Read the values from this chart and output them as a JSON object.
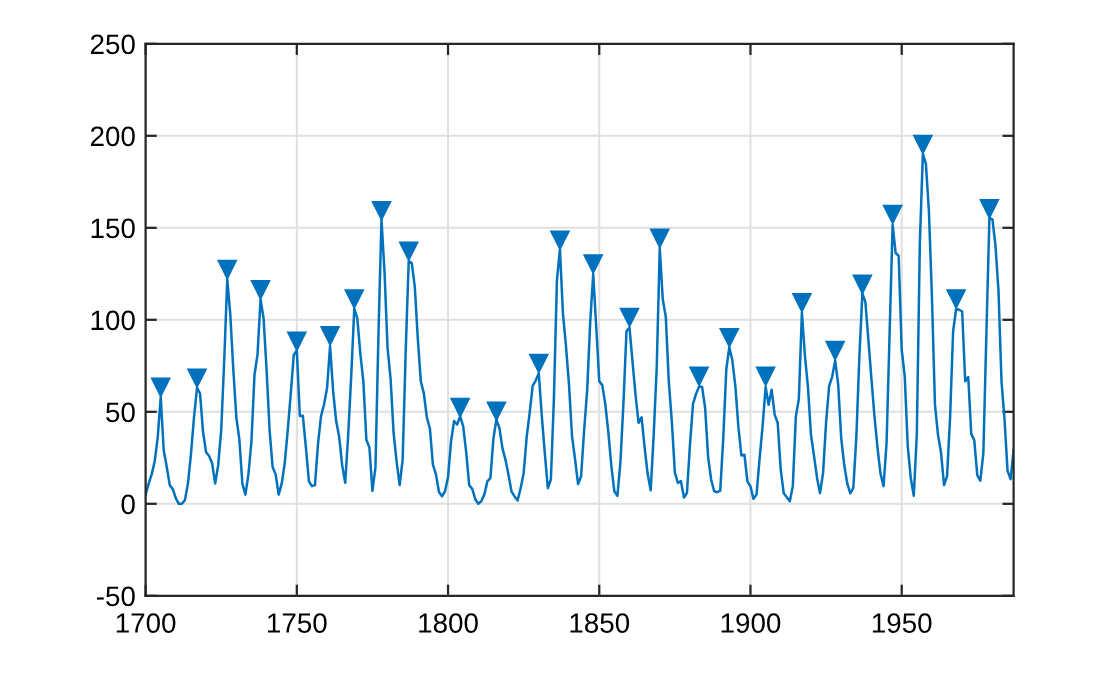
{
  "chart_data": {
    "type": "line",
    "xlim": [
      1700,
      1987
    ],
    "xticks": [
      1700,
      1750,
      1800,
      1850,
      1900,
      1950
    ],
    "ylim": [
      -50,
      250
    ],
    "yticks": [
      -50,
      0,
      50,
      100,
      150,
      200,
      250
    ],
    "grid": true,
    "series": [
      {
        "color": "#0072bd",
        "line_style": "solid",
        "marker": "none",
        "x": [
          1700,
          1701,
          1702,
          1703,
          1704,
          1705,
          1706,
          1707,
          1708,
          1709,
          1710,
          1711,
          1712,
          1713,
          1714,
          1715,
          1716,
          1717,
          1718,
          1719,
          1720,
          1721,
          1722,
          1723,
          1724,
          1725,
          1726,
          1727,
          1728,
          1729,
          1730,
          1731,
          1732,
          1733,
          1734,
          1735,
          1736,
          1737,
          1738,
          1739,
          1740,
          1741,
          1742,
          1743,
          1744,
          1745,
          1746,
          1747,
          1748,
          1749,
          1750,
          1751,
          1752,
          1753,
          1754,
          1755,
          1756,
          1757,
          1758,
          1759,
          1760,
          1761,
          1762,
          1763,
          1764,
          1765,
          1766,
          1767,
          1768,
          1769,
          1770,
          1771,
          1772,
          1773,
          1774,
          1775,
          1776,
          1777,
          1778,
          1779,
          1780,
          1781,
          1782,
          1783,
          1784,
          1785,
          1786,
          1787,
          1788,
          1789,
          1790,
          1791,
          1792,
          1793,
          1794,
          1795,
          1796,
          1797,
          1798,
          1799,
          1800,
          1801,
          1802,
          1803,
          1804,
          1805,
          1806,
          1807,
          1808,
          1809,
          1810,
          1811,
          1812,
          1813,
          1814,
          1815,
          1816,
          1817,
          1818,
          1819,
          1820,
          1821,
          1822,
          1823,
          1824,
          1825,
          1826,
          1827,
          1828,
          1829,
          1830,
          1831,
          1832,
          1833,
          1834,
          1835,
          1836,
          1837,
          1838,
          1839,
          1840,
          1841,
          1842,
          1843,
          1844,
          1845,
          1846,
          1847,
          1848,
          1849,
          1850,
          1851,
          1852,
          1853,
          1854,
          1855,
          1856,
          1857,
          1858,
          1859,
          1860,
          1861,
          1862,
          1863,
          1864,
          1865,
          1866,
          1867,
          1868,
          1869,
          1870,
          1871,
          1872,
          1873,
          1874,
          1875,
          1876,
          1877,
          1878,
          1879,
          1880,
          1881,
          1882,
          1883,
          1884,
          1885,
          1886,
          1887,
          1888,
          1889,
          1890,
          1891,
          1892,
          1893,
          1894,
          1895,
          1896,
          1897,
          1898,
          1899,
          1900,
          1901,
          1902,
          1903,
          1904,
          1905,
          1906,
          1907,
          1908,
          1909,
          1910,
          1911,
          1912,
          1913,
          1914,
          1915,
          1916,
          1917,
          1918,
          1919,
          1920,
          1921,
          1922,
          1923,
          1924,
          1925,
          1926,
          1927,
          1928,
          1929,
          1930,
          1931,
          1932,
          1933,
          1934,
          1935,
          1936,
          1937,
          1938,
          1939,
          1940,
          1941,
          1942,
          1943,
          1944,
          1945,
          1946,
          1947,
          1948,
          1949,
          1950,
          1951,
          1952,
          1953,
          1954,
          1955,
          1956,
          1957,
          1958,
          1959,
          1960,
          1961,
          1962,
          1963,
          1964,
          1965,
          1966,
          1967,
          1968,
          1969,
          1970,
          1971,
          1972,
          1973,
          1974,
          1975,
          1976,
          1977,
          1978,
          1979,
          1980,
          1981,
          1982,
          1983,
          1984,
          1985,
          1986,
          1987
        ],
        "values": [
          5,
          11,
          16,
          23,
          36,
          58,
          29,
          20,
          10,
          8,
          3,
          0,
          0,
          2,
          11,
          27,
          47,
          63,
          60,
          39,
          28,
          26,
          22,
          11,
          21,
          40,
          78,
          122,
          103,
          73,
          47,
          35,
          11,
          5,
          16,
          34,
          70,
          81,
          111,
          101,
          73,
          40,
          20,
          16,
          5,
          11,
          22,
          40,
          60,
          80.9,
          83.4,
          47.7,
          47.8,
          30.7,
          12.2,
          9.6,
          10.2,
          32.4,
          47.6,
          54,
          62.9,
          85.9,
          61.2,
          45.1,
          36.4,
          20.9,
          11.4,
          37.8,
          69.8,
          106.1,
          100.8,
          81.6,
          66.5,
          34.8,
          30.6,
          7,
          19.8,
          92.5,
          154.4,
          125.9,
          84.8,
          68.1,
          38.5,
          22.8,
          10.2,
          24.1,
          82.9,
          132,
          130.9,
          118.1,
          89.9,
          66.6,
          60,
          46.9,
          41,
          21.3,
          16,
          6.4,
          4.1,
          6.8,
          14.5,
          34,
          45,
          43.1,
          47.5,
          42.2,
          28.1,
          10.1,
          8.1,
          2.5,
          0,
          1.4,
          5,
          12.2,
          13.9,
          35.4,
          45.8,
          41.1,
          30.1,
          23.9,
          15.6,
          6.6,
          4,
          1.8,
          8.5,
          16.6,
          36.3,
          49.6,
          64.2,
          67,
          70.9,
          47.8,
          27.5,
          8.5,
          13.2,
          56.9,
          121.5,
          138.3,
          103.2,
          85.7,
          64.6,
          36.7,
          24.2,
          10.7,
          15,
          40.1,
          61.5,
          98.5,
          124.7,
          96.3,
          66.6,
          64.5,
          54.1,
          39,
          20.6,
          6.7,
          4.3,
          22.7,
          54.8,
          93.8,
          95.8,
          77.2,
          59.1,
          44,
          47,
          30.5,
          16.3,
          7.3,
          37.6,
          74,
          139,
          111.2,
          101.6,
          66.2,
          44.7,
          17,
          11.3,
          12.4,
          3.4,
          6,
          32.3,
          54.3,
          59.7,
          63.7,
          63.5,
          52.2,
          25.4,
          13.1,
          6.8,
          6.3,
          7.1,
          35.6,
          73,
          85.1,
          78,
          64,
          41.8,
          26.2,
          26.7,
          12.1,
          9.5,
          2.7,
          5,
          24.4,
          42,
          63.5,
          53.8,
          62,
          48.5,
          43.9,
          18.6,
          5.7,
          3.6,
          1.4,
          9.6,
          47.4,
          57.1,
          103.9,
          80.6,
          63.6,
          37.6,
          26.1,
          14.2,
          5.8,
          16.7,
          44.3,
          63.9,
          69,
          77.8,
          64.9,
          35.7,
          21.2,
          11.1,
          5.7,
          8.7,
          36.1,
          79.7,
          114.4,
          109.6,
          88.8,
          67.8,
          47.5,
          30.6,
          16.3,
          9.6,
          33.2,
          92.6,
          151.6,
          136.3,
          134.7,
          83.9,
          69.4,
          31.5,
          13.9,
          4.4,
          38,
          141.7,
          190.2,
          184.8,
          159,
          112.3,
          53.9,
          37.5,
          27.9,
          10.2,
          15.1,
          47,
          93.8,
          105.9,
          105.5,
          104.5,
          66.6,
          68.9,
          38,
          34.5,
          15.5,
          12.6,
          27.5,
          92.5,
          155.4,
          154.6,
          140.4,
          115.9,
          66.6,
          45.9,
          17.9,
          13.4,
          29.2
        ]
      },
      {
        "type": "scatter",
        "color": "#0072bd",
        "marker": "triangle",
        "x": [
          1705,
          1717,
          1727,
          1738,
          1750,
          1761,
          1769,
          1778,
          1787,
          1804,
          1816,
          1830,
          1837,
          1848,
          1860,
          1870,
          1883,
          1893,
          1905,
          1917,
          1928,
          1937,
          1947,
          1957,
          1968,
          1979
        ],
        "values": [
          63,
          68,
          127,
          116,
          88,
          91,
          111,
          159,
          137,
          52,
          50,
          76,
          143,
          130,
          101,
          144,
          69,
          90,
          69,
          109,
          83,
          119,
          157,
          195,
          111,
          160
        ]
      }
    ]
  }
}
